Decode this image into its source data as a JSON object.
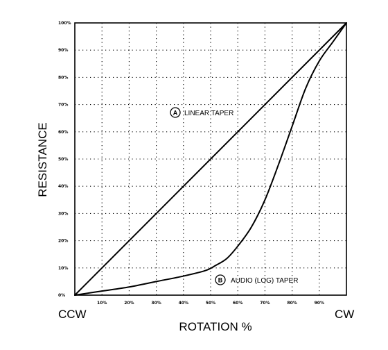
{
  "chart_data": {
    "type": "line",
    "xlabel": "ROTATION %",
    "ylabel": "RESISTANCE",
    "x_start_label": "CCW",
    "x_end_label": "CW",
    "xlim": [
      0,
      100
    ],
    "ylim": [
      0,
      100
    ],
    "grid": true,
    "x_ticks": [
      {
        "value": 10,
        "label": "10%"
      },
      {
        "value": 20,
        "label": "20%"
      },
      {
        "value": 30,
        "label": "30%"
      },
      {
        "value": 40,
        "label": "40%"
      },
      {
        "value": 50,
        "label": "50%"
      },
      {
        "value": 60,
        "label": "60%"
      },
      {
        "value": 70,
        "label": "70%"
      },
      {
        "value": 80,
        "label": "80%"
      },
      {
        "value": 90,
        "label": "90%"
      }
    ],
    "y_ticks": [
      {
        "value": 0,
        "label": "0%"
      },
      {
        "value": 10,
        "label": "10%"
      },
      {
        "value": 20,
        "label": "20%"
      },
      {
        "value": 30,
        "label": "30%"
      },
      {
        "value": 40,
        "label": "40%"
      },
      {
        "value": 50,
        "label": "50%"
      },
      {
        "value": 60,
        "label": "60%"
      },
      {
        "value": 70,
        "label": "70%"
      },
      {
        "value": 80,
        "label": "80%"
      },
      {
        "value": 90,
        "label": "90%"
      },
      {
        "value": 100,
        "label": "100%"
      }
    ],
    "series": [
      {
        "marker": "A",
        "label": "LINEAR TAPER",
        "x": [
          0,
          100
        ],
        "y": [
          0,
          100
        ]
      },
      {
        "marker": "B",
        "label": "AUDIO (LOG) TAPER",
        "x": [
          0,
          10,
          20,
          30,
          40,
          48,
          52,
          56,
          60,
          65,
          70,
          75,
          80,
          85,
          90,
          95,
          100
        ],
        "y": [
          0,
          1.5,
          3,
          5,
          7,
          9,
          11,
          13.5,
          18,
          25,
          35,
          48,
          62,
          76,
          86,
          93,
          100
        ]
      }
    ]
  }
}
